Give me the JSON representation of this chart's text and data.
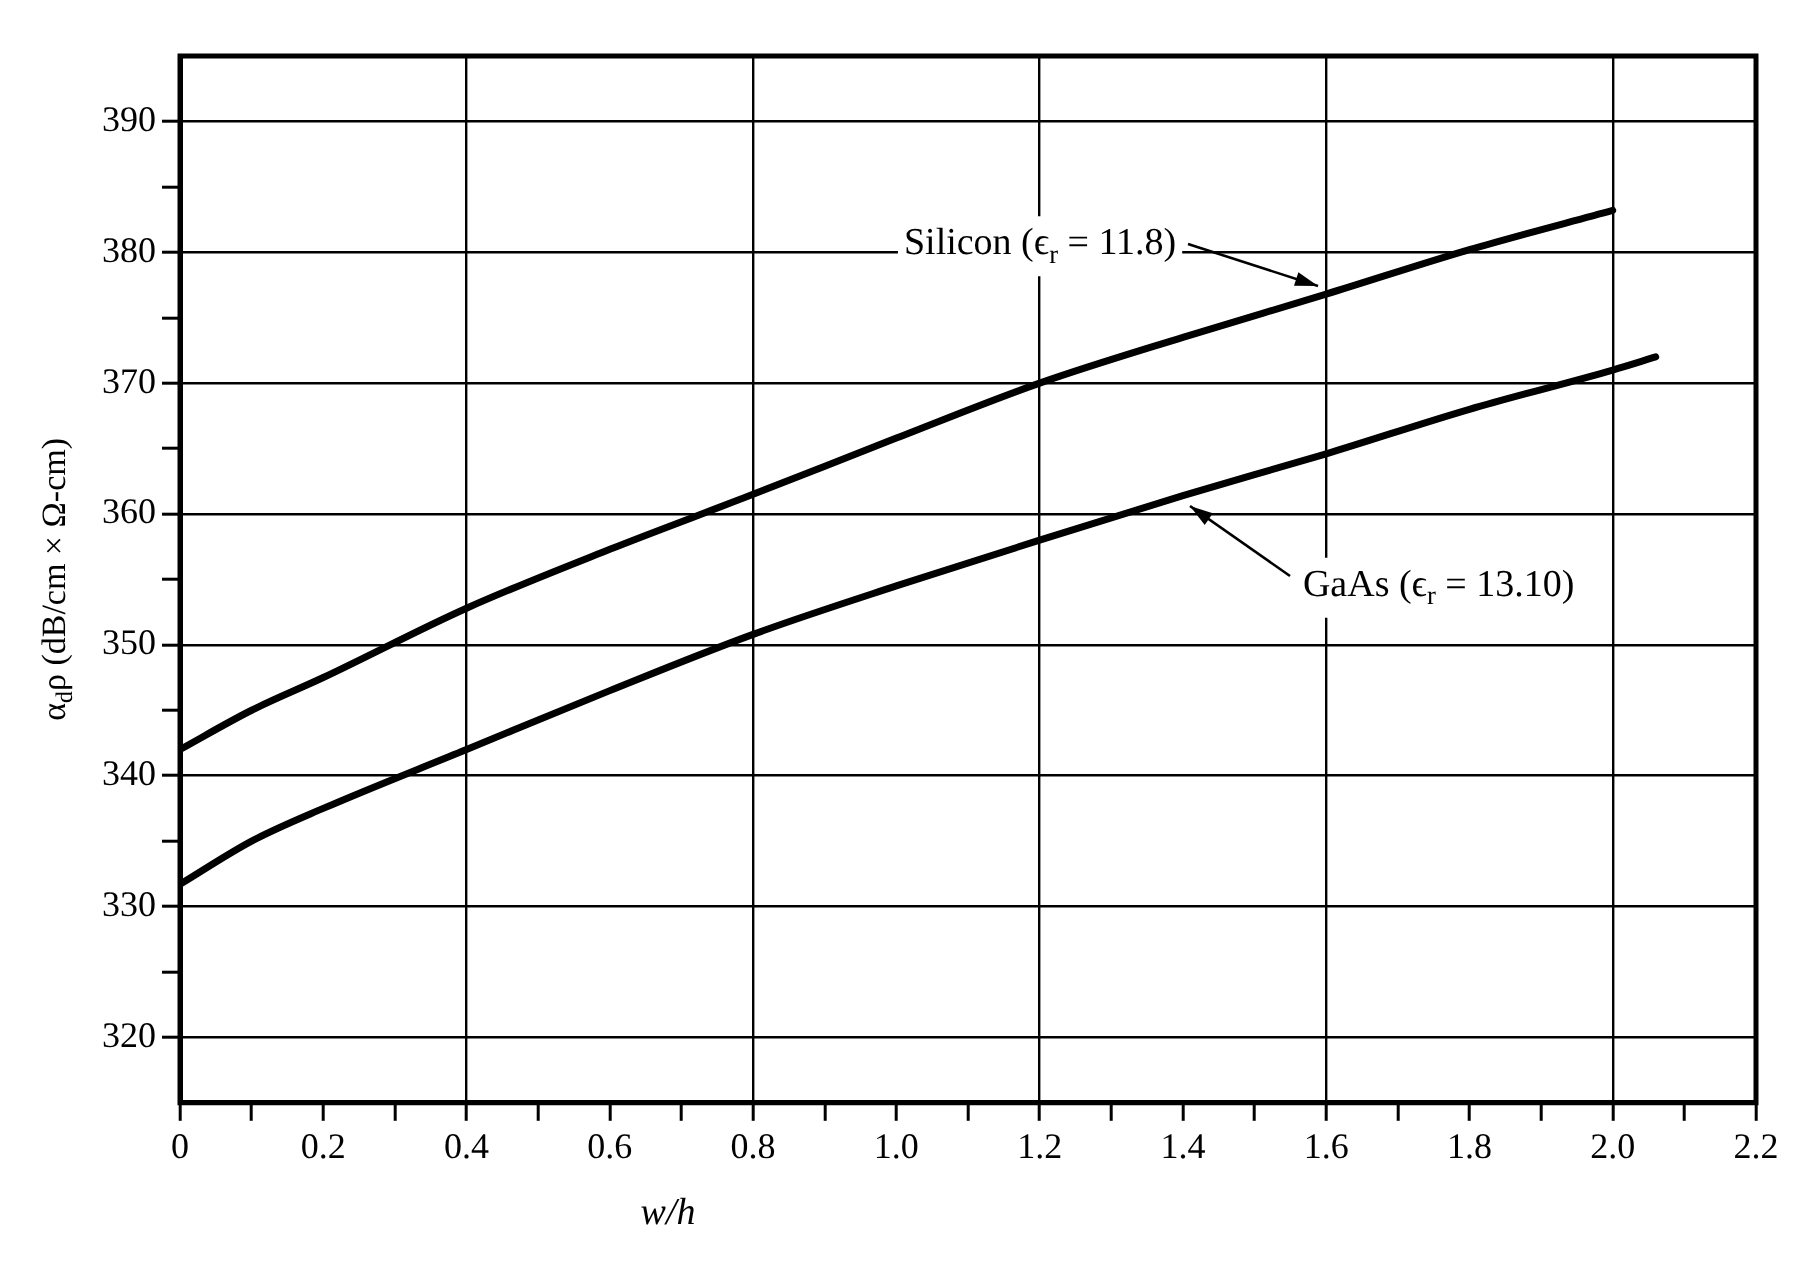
{
  "chart_data": {
    "type": "line",
    "xlabel": "w/h",
    "ylabel": "α$_{d}$ρ (dB/cm × Ω-cm)",
    "xlim": [
      0,
      2.2
    ],
    "ylim": [
      315,
      395
    ],
    "xticks": [
      0,
      {
        "value": 0.1,
        "label": null
      },
      0.2,
      {
        "value": 0.3,
        "label": null
      },
      0.4,
      {
        "value": 0.5,
        "label": null
      },
      0.6,
      {
        "value": 0.7,
        "label": null
      },
      0.8,
      {
        "value": 0.9,
        "label": null
      },
      {
        "value": 1,
        "label": "1.0"
      },
      {
        "value": 1.1,
        "label": null
      },
      1.2,
      {
        "value": 1.3,
        "label": null
      },
      1.4,
      {
        "value": 1.5,
        "label": null
      },
      1.6,
      {
        "value": 1.7,
        "label": null
      },
      1.8,
      {
        "value": 1.9,
        "label": null
      },
      {
        "value": 2,
        "label": "2.0"
      },
      {
        "value": 2.1,
        "label": null
      },
      2.2
    ],
    "yticks": [
      320,
      {
        "value": 325,
        "label": null
      },
      330,
      {
        "value": 335,
        "label": null
      },
      340,
      {
        "value": 345,
        "label": null
      },
      350,
      {
        "value": 355,
        "label": null
      },
      360,
      {
        "value": 365,
        "label": null
      },
      370,
      {
        "value": 375,
        "label": null
      },
      380,
      {
        "value": 385,
        "label": null
      },
      390
    ],
    "grid": true,
    "marker": "none",
    "line_style": "solid",
    "series": [
      {
        "name": "Silicon (ϵ$_{r}$ = 11.8)",
        "color": "#000000",
        "x": [
          0,
          0.1,
          0.2,
          0.4,
          0.6,
          0.8,
          1.0,
          1.2,
          1.4,
          1.6,
          1.8,
          2.0
        ],
        "values": [
          342,
          345,
          347.5,
          352.8,
          357.3,
          361.5,
          365.8,
          370,
          373.5,
          376.8,
          380.2,
          383.2
        ]
      },
      {
        "name": "GaAs (ϵ$_{r}$ = 13.10)",
        "color": "#000000",
        "x": [
          0,
          0.1,
          0.2,
          0.4,
          0.6,
          0.8,
          1.0,
          1.2,
          1.4,
          1.6,
          1.8,
          2.0,
          2.06
        ],
        "values": [
          331.7,
          335,
          337.5,
          342,
          346.5,
          350.8,
          354.5,
          358,
          361.4,
          364.6,
          368,
          371,
          372
        ]
      }
    ]
  }
}
